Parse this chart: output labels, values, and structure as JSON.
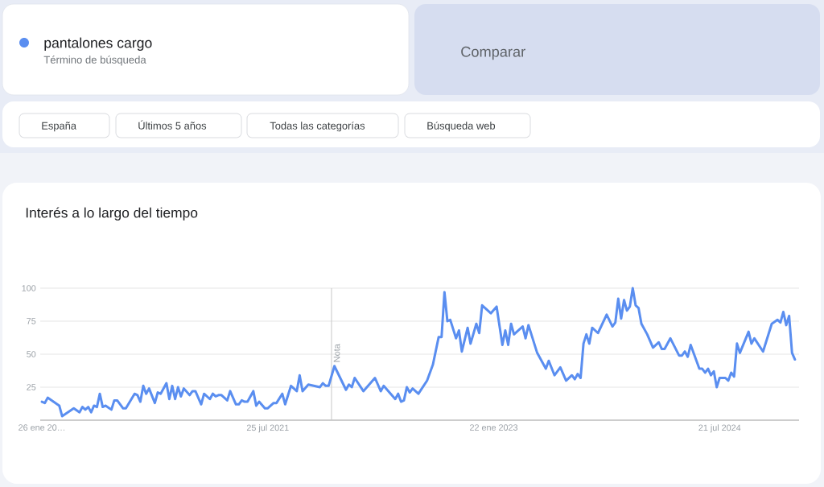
{
  "chart_data": {
    "type": "line",
    "title": "Interés a lo largo del tiempo",
    "annotations": [
      "Término de búsqueda",
      "Comparar",
      "España",
      "Últimos 5 años",
      "Todas las categorías",
      "Búsqueda web"
    ],
    "x": [
      "2020-01-26",
      "2020-02-02",
      "2020-02-09",
      "2020-03-08",
      "2020-03-15",
      "2020-03-29",
      "2020-04-12",
      "2020-04-26",
      "2020-05-03",
      "2020-05-10",
      "2020-05-17",
      "2020-05-24",
      "2020-05-31",
      "2020-06-07",
      "2020-06-14",
      "2020-06-21",
      "2020-06-28",
      "2020-07-12",
      "2020-07-19",
      "2020-07-26",
      "2020-08-09",
      "2020-08-16",
      "2020-09-06",
      "2020-09-13",
      "2020-09-20",
      "2020-09-27",
      "2020-10-04",
      "2020-10-11",
      "2020-10-25",
      "2020-11-01",
      "2020-11-08",
      "2020-11-22",
      "2020-11-29",
      "2020-12-06",
      "2020-12-13",
      "2020-12-20",
      "2020-12-27",
      "2021-01-03",
      "2021-01-17",
      "2021-01-24",
      "2021-01-31",
      "2021-02-14",
      "2021-02-21",
      "2021-03-07",
      "2021-03-14",
      "2021-03-21",
      "2021-03-28",
      "2021-04-04",
      "2021-04-18",
      "2021-04-25",
      "2021-05-09",
      "2021-05-16",
      "2021-05-23",
      "2021-05-30",
      "2021-06-06",
      "2021-06-20",
      "2021-06-27",
      "2021-07-04",
      "2021-07-18",
      "2021-07-25",
      "2021-08-08",
      "2021-08-15",
      "2021-08-29",
      "2021-09-05",
      "2021-09-19",
      "2021-10-03",
      "2021-10-10",
      "2021-10-17",
      "2021-10-31",
      "2021-11-28",
      "2021-12-05",
      "2021-12-12",
      "2021-12-19",
      "2022-01-02",
      "2022-01-30",
      "2022-02-06",
      "2022-02-13",
      "2022-02-20",
      "2022-03-13",
      "2022-04-10",
      "2022-04-24",
      "2022-05-01",
      "2022-05-29",
      "2022-06-05",
      "2022-06-12",
      "2022-06-19",
      "2022-06-26",
      "2022-07-03",
      "2022-07-10",
      "2022-07-24",
      "2022-08-14",
      "2022-08-28",
      "2022-09-11",
      "2022-09-18",
      "2022-09-25",
      "2022-10-02",
      "2022-10-09",
      "2022-10-23",
      "2022-10-30",
      "2022-11-06",
      "2022-11-20",
      "2022-11-27",
      "2022-12-11",
      "2022-12-18",
      "2022-12-25",
      "2023-01-15",
      "2023-01-29",
      "2023-02-12",
      "2023-02-19",
      "2023-02-26",
      "2023-03-05",
      "2023-03-12",
      "2023-04-02",
      "2023-04-09",
      "2023-04-16",
      "2023-05-07",
      "2023-05-28",
      "2023-06-04",
      "2023-06-18",
      "2023-07-02",
      "2023-07-16",
      "2023-07-30",
      "2023-08-06",
      "2023-08-13",
      "2023-08-20",
      "2023-08-27",
      "2023-09-03",
      "2023-09-10",
      "2023-09-17",
      "2023-10-01",
      "2023-10-22",
      "2023-11-05",
      "2023-11-12",
      "2023-11-19",
      "2023-11-26",
      "2023-12-03",
      "2023-12-10",
      "2023-12-17",
      "2023-12-24",
      "2023-12-31",
      "2024-01-07",
      "2024-01-14",
      "2024-01-28",
      "2024-02-11",
      "2024-02-25",
      "2024-03-03",
      "2024-03-10",
      "2024-03-24",
      "2024-04-14",
      "2024-04-21",
      "2024-04-28",
      "2024-05-05",
      "2024-05-12",
      "2024-06-02",
      "2024-06-09",
      "2024-06-16",
      "2024-06-23",
      "2024-06-30",
      "2024-07-07",
      "2024-07-14",
      "2024-07-21",
      "2024-08-04",
      "2024-08-11",
      "2024-08-18",
      "2024-08-25",
      "2024-09-01",
      "2024-09-08",
      "2024-09-29",
      "2024-10-06",
      "2024-10-13",
      "2024-11-03",
      "2024-11-24",
      "2024-12-08",
      "2024-12-15",
      "2024-12-22",
      "2024-12-29",
      "2025-01-05",
      "2025-01-12",
      "2025-01-19"
    ],
    "series": [
      {
        "name": "pantalones cargo",
        "color": "#5a8ef0",
        "values": [
          14,
          13,
          17,
          11,
          3,
          6,
          9,
          6,
          10,
          8,
          10,
          6,
          11,
          10,
          20,
          10,
          11,
          8,
          15,
          15,
          9,
          9,
          20,
          19,
          14,
          26,
          20,
          24,
          13,
          21,
          20,
          28,
          16,
          26,
          16,
          25,
          18,
          24,
          19,
          22,
          22,
          12,
          20,
          16,
          20,
          18,
          19,
          19,
          15,
          22,
          12,
          12,
          15,
          14,
          14,
          22,
          11,
          14,
          9,
          9,
          13,
          13,
          20,
          12,
          26,
          22,
          34,
          22,
          27,
          25,
          28,
          26,
          26,
          41,
          23,
          27,
          25,
          32,
          22,
          32,
          22,
          26,
          16,
          20,
          14,
          15,
          25,
          21,
          24,
          20,
          30,
          42,
          63,
          63,
          97,
          75,
          76,
          62,
          68,
          52,
          70,
          58,
          73,
          66,
          87,
          81,
          86,
          57,
          68,
          57,
          73,
          65,
          71,
          62,
          72,
          51,
          39,
          45,
          34,
          40,
          30,
          34,
          31,
          35,
          32,
          58,
          65,
          58,
          70,
          66,
          80,
          71,
          74,
          92,
          77,
          91,
          83,
          86,
          100,
          87,
          85,
          73,
          65,
          55,
          59,
          54,
          54,
          62,
          49,
          49,
          52,
          48,
          57,
          39,
          39,
          36,
          39,
          34,
          37,
          25,
          32,
          32,
          30,
          36,
          33,
          58,
          51,
          67,
          58,
          62,
          52,
          73,
          76,
          74,
          82,
          72,
          79,
          51,
          46
        ]
      }
    ],
    "xlim": [
      "2020-01-22",
      "2025-01-29"
    ],
    "xticks": [
      {
        "value": "2020-01-26",
        "label": "26 ene 20…"
      },
      {
        "value": "2021-07-25",
        "label": "25 jul 2021"
      },
      {
        "value": "2023-01-22",
        "label": "22 ene 2023"
      },
      {
        "value": "2024-07-21",
        "label": "21 jul 2024"
      }
    ],
    "ylim": [
      0,
      100
    ],
    "yticks": [
      25,
      50,
      75,
      100
    ],
    "grid": "y",
    "legend": "top left",
    "line_style": "solid",
    "ref_lines": [
      {
        "axis": "x",
        "value": "2021-12-26",
        "label": "Nota",
        "color": "#c8c8c8"
      }
    ]
  }
}
